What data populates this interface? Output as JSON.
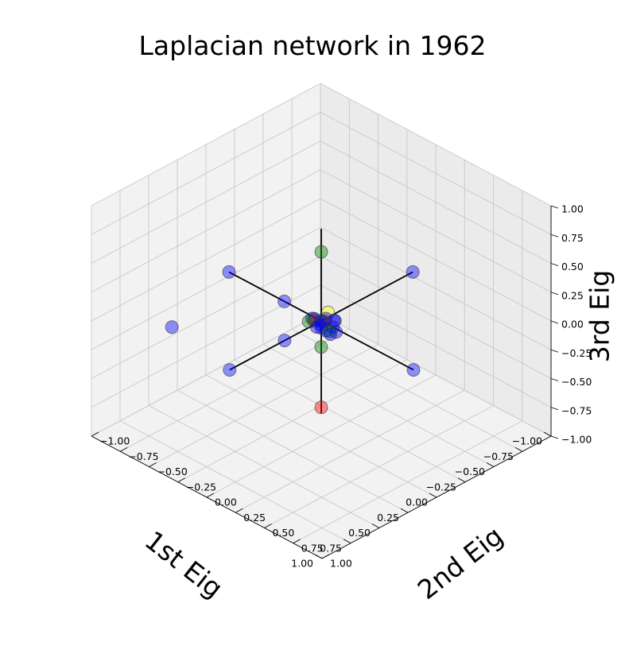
{
  "chart_data": {
    "type": "scatter",
    "projection": "3d",
    "view": {
      "azimuth_deg": 45,
      "elevation_deg": 45
    },
    "title": "Laplacian network in 1962",
    "xlabel": "1st Eig",
    "ylabel": "2nd Eig",
    "zlabel": "3rd Eig",
    "xlim": [
      -1,
      1
    ],
    "ylim": [
      -1,
      1
    ],
    "zlim": [
      -1,
      1
    ],
    "grid": true,
    "x_ticks": [
      "1.00",
      "0.75",
      "0.50",
      "0.25",
      "0.00",
      "−0.25",
      "−0.50",
      "−0.75",
      "−1.00"
    ],
    "y_ticks": [
      "1.00",
      "0.75",
      "0.50",
      "0.25",
      "0.00",
      "−0.25",
      "−0.50",
      "−0.75",
      "−1.00"
    ],
    "z_ticks": [
      "1.00",
      "0.75",
      "0.50",
      "0.25",
      "0.00",
      "−0.25",
      "−0.50",
      "−0.75",
      "−1.00"
    ],
    "reference_axes": {
      "color": "#000000",
      "extent": 0.8
    },
    "series": [
      {
        "color": "#0000ff",
        "points": [
          [
            0.8,
            0,
            0
          ],
          [
            0,
            -0.8,
            0
          ],
          [
            0,
            0.8,
            0
          ],
          [
            -0.8,
            0,
            0
          ],
          [
            0.7,
            -0.6,
            0
          ],
          [
            0.32,
            0,
            0
          ],
          [
            0,
            -0.32,
            0
          ],
          [
            -0.04,
            0.07,
            0.02
          ],
          [
            -0.08,
            0.04,
            -0.02
          ],
          [
            0.03,
            0.07,
            -0.03
          ],
          [
            0,
            0.1,
            0
          ],
          [
            -0.02,
            0.02,
            0.02
          ],
          [
            0.04,
            -0.02,
            0.03
          ],
          [
            0.06,
            0.02,
            -0.01
          ],
          [
            0.02,
            -0.06,
            0
          ],
          [
            0.02,
            0.02,
            -0.04
          ],
          [
            0.05,
            0.05,
            0.02
          ],
          [
            -0.05,
            0.08,
            -0.08
          ],
          [
            0.01,
            0.01,
            0.01
          ],
          [
            0.03,
            0.11,
            -0.04
          ]
        ]
      },
      {
        "color": "#008000",
        "points": [
          [
            0,
            0,
            0.6
          ],
          [
            -0.07,
            -0.07,
            -0.3
          ],
          [
            0.06,
            -0.05,
            0
          ],
          [
            0.05,
            0.12,
            0
          ]
        ]
      },
      {
        "color": "#ffff00",
        "points": [
          [
            -0.1,
            -0.04,
            0
          ]
        ]
      },
      {
        "color": "#ff0000",
        "points": [
          [
            0,
            0,
            -0.75
          ],
          [
            -0.02,
            0.01,
            -0.01
          ],
          [
            0.03,
            -0.03,
            0
          ]
        ]
      },
      {
        "color": "#008080",
        "points": [
          [
            0,
            0,
            0
          ]
        ]
      }
    ]
  }
}
